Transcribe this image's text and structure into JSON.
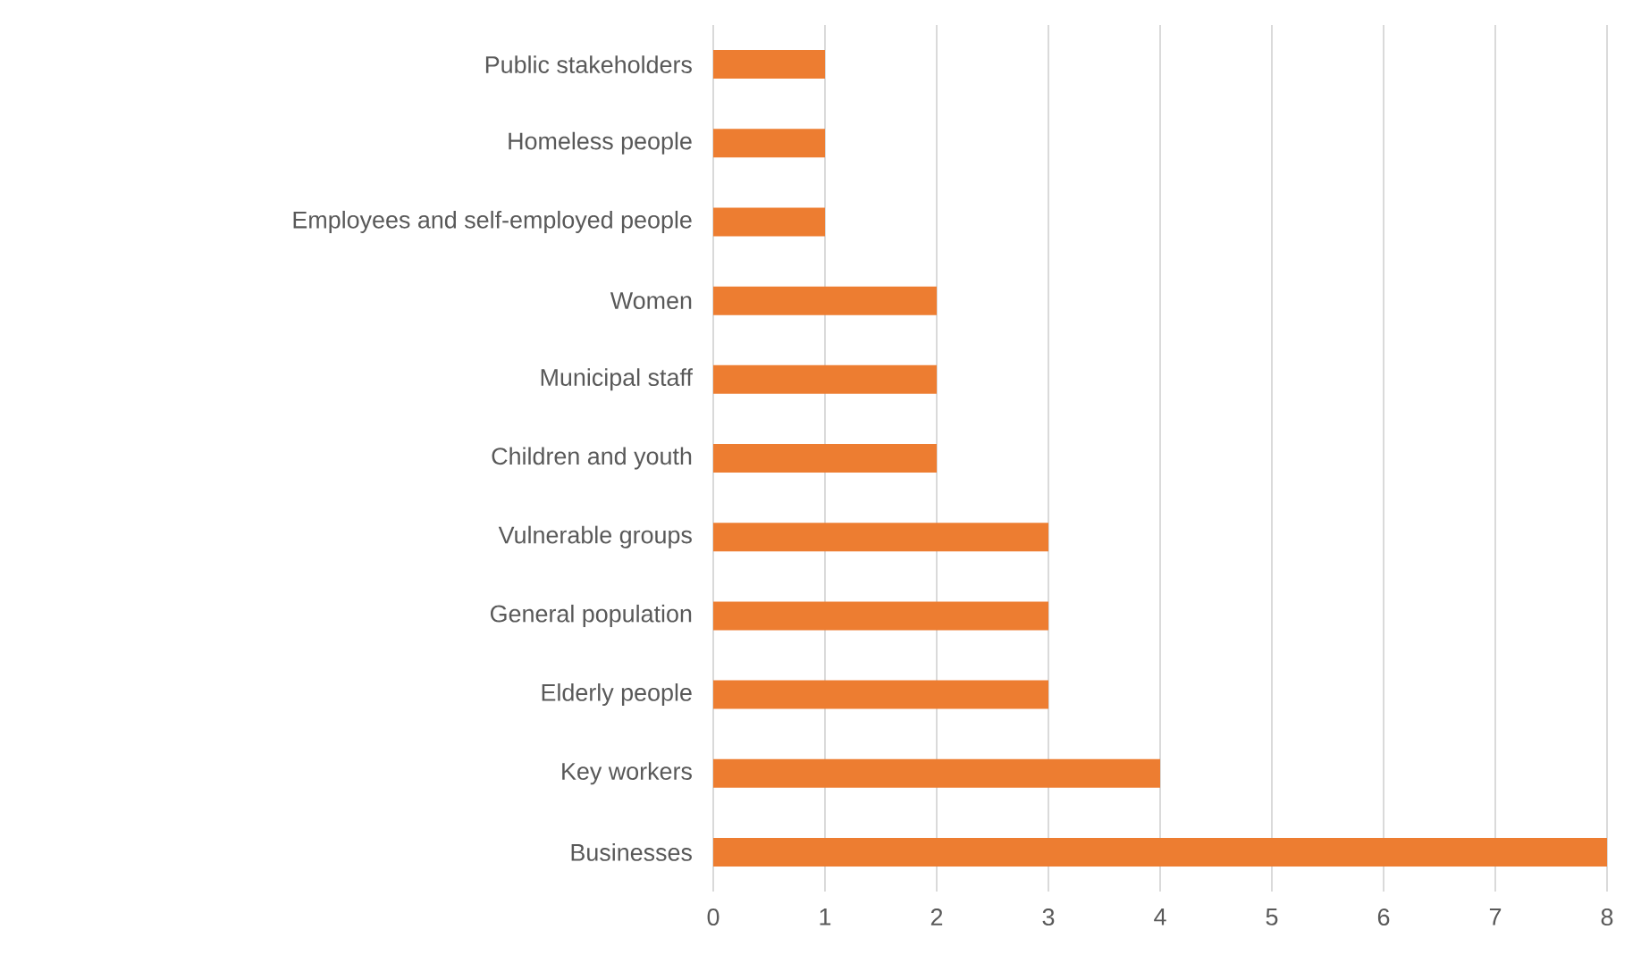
{
  "chart_data": {
    "type": "bar",
    "orientation": "horizontal",
    "categories": [
      "Public stakeholders",
      "Homeless people",
      "Employees and self-employed people",
      "Women",
      "Municipal staff",
      "Children and youth",
      "Vulnerable groups",
      "General population",
      "Elderly people",
      "Key workers",
      "Businesses"
    ],
    "values": [
      1,
      1,
      1,
      2,
      2,
      2,
      3,
      3,
      3,
      4,
      8
    ],
    "color": "#ed7d31",
    "xlim": [
      0,
      8
    ],
    "xticks": [
      0,
      1,
      2,
      3,
      4,
      5,
      6,
      7,
      8
    ],
    "grid": "x"
  }
}
